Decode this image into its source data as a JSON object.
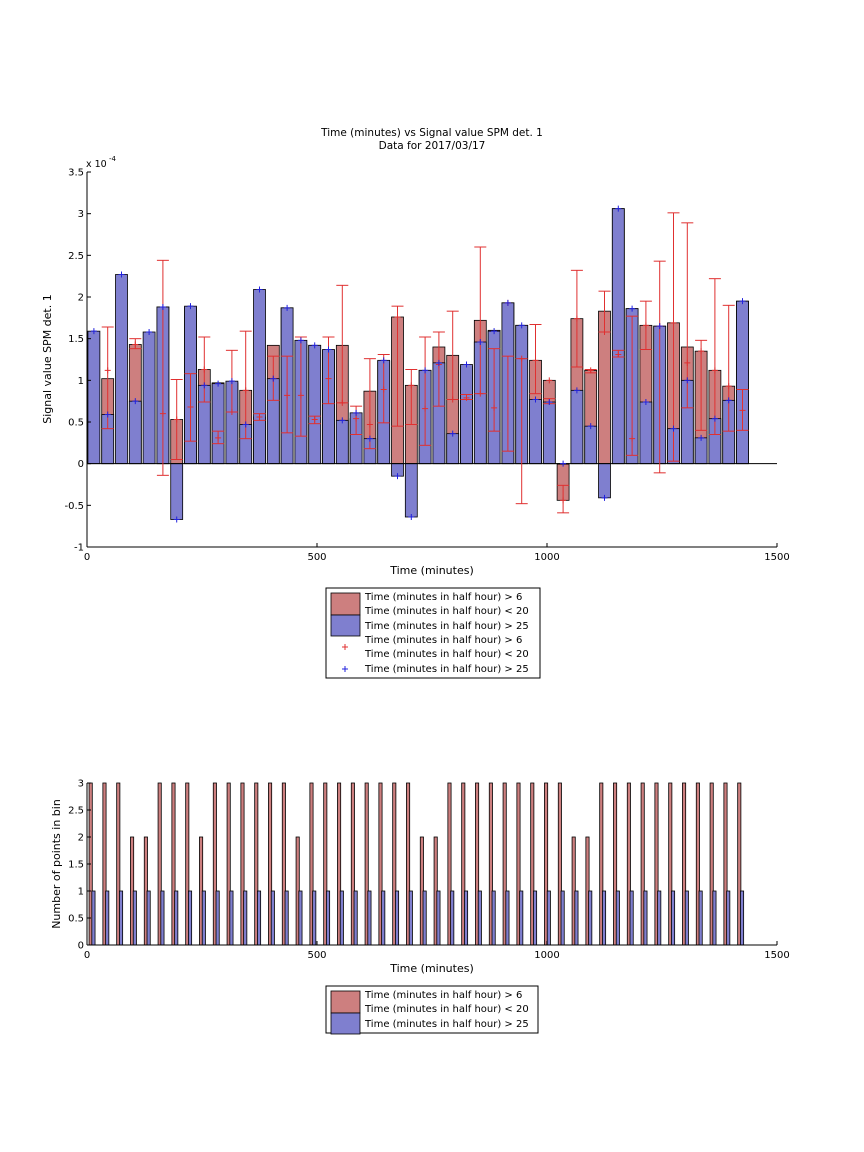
{
  "figure": {
    "background": "#ffffff"
  },
  "colors": {
    "series_red_fill": "#cd7f7f",
    "series_blue_fill": "#7f7fcf",
    "errorbar_red": "#e03030",
    "errorbar_blue": "#2222dd",
    "axis": "#000000"
  },
  "chart_data": [
    {
      "type": "bar",
      "title": "Time (minutes) vs Signal value SPM det. 1",
      "subtitle": "Data for 2017/03/17",
      "xlabel": "Time (minutes)",
      "ylabel": "Signal value SPM det. 1",
      "y_exponent_label": "x 10",
      "y_exponent": "-4",
      "xlim": [
        0,
        1500
      ],
      "ylim": [
        -1,
        3.5
      ],
      "xticks": [
        0,
        500,
        1000,
        1500
      ],
      "yticks": [
        -1,
        -0.5,
        0,
        0.5,
        1,
        1.5,
        2,
        2.5,
        3,
        3.5
      ],
      "grid": false,
      "legend_position": "below",
      "legend": [
        {
          "marker": "patch",
          "color": "red",
          "lines": [
            "Time (minutes in half hour) > 6",
            "Time (minutes in half hour) < 20"
          ]
        },
        {
          "marker": "patch",
          "color": "blue",
          "lines": [
            "Time (minutes in half hour) > 25"
          ]
        },
        {
          "marker": "plus",
          "color": "red",
          "lines": [
            "Time (minutes in half hour) > 6",
            "Time (minutes in half hour) < 20"
          ]
        },
        {
          "marker": "plus",
          "color": "blue",
          "lines": [
            "Time (minutes in half hour) > 25"
          ]
        }
      ],
      "series": [
        {
          "color": "red",
          "x": [
            45,
            105,
            165,
            195,
            225,
            255,
            285,
            315,
            345,
            375,
            405,
            435,
            465,
            495,
            525,
            555,
            585,
            615,
            645,
            675,
            705,
            735,
            765,
            795,
            825,
            855,
            885,
            915,
            945,
            975,
            1005,
            1035,
            1065,
            1095,
            1125,
            1155,
            1185,
            1215,
            1245,
            1275,
            1305,
            1335,
            1365,
            1395,
            1425
          ],
          "y": [
            1.02,
            1.43,
            1.88,
            0.53,
            1.88,
            1.13,
            0.97,
            0.97,
            0.88,
            0.56,
            1.42,
            1.87,
            1.43,
            1.42,
            1.36,
            1.42,
            0.54,
            0.87,
            1.23,
            1.76,
            0.94,
            1.12,
            1.4,
            1.3,
            1.17,
            1.72,
            1.6,
            1.93,
            1.66,
            1.24,
            1.0,
            -0.44,
            1.74,
            1.12,
            1.83,
            3.06,
            1.86,
            1.66,
            1.65,
            1.69,
            1.4,
            1.35,
            1.12,
            0.93,
            1.95
          ],
          "err_low": [
            0.42,
            1.38,
            -0.14,
            0.05,
            0.27,
            0.74,
            0.24,
            0.62,
            0.3,
            0.52,
            0.76,
            0.37,
            0.33,
            0.48,
            0.72,
            0.73,
            0.35,
            0.18,
            0.49,
            0.45,
            0.47,
            0.22,
            0.69,
            0.77,
            0.77,
            0.84,
            0.39,
            0.15,
            -0.48,
            0.84,
            0.72,
            -0.59,
            1.16,
            1.09,
            1.58,
            1.28,
            0.1,
            1.37,
            -0.11,
            0.03,
            0.67,
            0.4,
            0.35,
            0.39,
            0.4
          ],
          "err_high": [
            1.64,
            1.5,
            2.44,
            1.01,
            1.08,
            1.52,
            0.39,
            1.36,
            1.59,
            0.6,
            1.29,
            1.29,
            1.52,
            0.57,
            1.52,
            2.14,
            0.69,
            1.26,
            1.31,
            1.89,
            1.13,
            1.52,
            1.58,
            1.83,
            0.83,
            2.6,
            1.38,
            1.29,
            1.26,
            1.67,
            0.78,
            -0.26,
            2.32,
            1.13,
            2.07,
            1.36,
            1.77,
            1.95,
            2.43,
            3.01,
            2.89,
            1.48,
            2.22,
            1.9,
            0.89
          ],
          "point": [
            1.12,
            1.43,
            0.6,
            0.53,
            0.68,
            1.13,
            0.31,
            0.62,
            0.88,
            0.56,
            1.02,
            0.82,
            0.82,
            0.53,
            1.02,
            0.73,
            0.54,
            0.47,
            0.89,
            1.76,
            0.94,
            0.66,
            1.19,
            0.77,
            0.79,
            0.84,
            0.67,
            1.93,
            1.26,
            1.24,
            1.0,
            -0.44,
            1.74,
            1.12,
            1.58,
            1.31,
            0.3,
            1.66,
            1.65,
            1.69,
            1.21,
            1.35,
            1.12,
            0.93,
            0.64
          ]
        },
        {
          "color": "blue",
          "x": [
            15,
            45,
            75,
            105,
            135,
            165,
            195,
            225,
            255,
            285,
            315,
            345,
            375,
            405,
            435,
            465,
            495,
            525,
            555,
            585,
            615,
            645,
            675,
            705,
            735,
            765,
            795,
            825,
            855,
            885,
            915,
            945,
            975,
            1005,
            1035,
            1065,
            1095,
            1125,
            1155,
            1185,
            1215,
            1245,
            1275,
            1305,
            1335,
            1365,
            1395,
            1425
          ],
          "y": [
            1.59,
            0.59,
            2.27,
            0.75,
            1.58,
            1.88,
            -0.67,
            1.89,
            0.94,
            0.96,
            0.99,
            0.47,
            2.09,
            1.02,
            1.87,
            1.48,
            1.42,
            1.37,
            0.52,
            0.61,
            0.3,
            1.24,
            -0.15,
            -0.64,
            1.12,
            1.21,
            0.36,
            1.19,
            1.46,
            1.59,
            1.93,
            1.66,
            0.77,
            0.74,
            0.0,
            0.88,
            0.45,
            -0.41,
            3.06,
            1.86,
            0.74,
            1.65,
            0.42,
            1.0,
            0.31,
            0.54,
            0.76,
            1.95
          ],
          "err_low": [
            1.59,
            0.59,
            2.27,
            0.75,
            1.58,
            1.88,
            -0.67,
            1.89,
            0.94,
            0.96,
            0.99,
            0.47,
            2.09,
            1.02,
            1.87,
            1.48,
            1.42,
            1.37,
            0.52,
            0.61,
            0.3,
            1.24,
            -0.15,
            -0.64,
            1.12,
            1.21,
            0.36,
            1.19,
            1.46,
            1.59,
            1.93,
            1.66,
            0.77,
            0.74,
            0.0,
            0.88,
            0.45,
            -0.41,
            3.06,
            1.86,
            0.74,
            1.65,
            0.42,
            1.0,
            0.31,
            0.54,
            0.76,
            1.95
          ],
          "err_high": [
            1.59,
            0.59,
            2.27,
            0.75,
            1.58,
            1.88,
            -0.67,
            1.89,
            0.94,
            0.96,
            0.99,
            0.47,
            2.09,
            1.02,
            1.87,
            1.48,
            1.42,
            1.37,
            0.52,
            0.61,
            0.3,
            1.24,
            -0.15,
            -0.64,
            1.12,
            1.21,
            0.36,
            1.19,
            1.46,
            1.59,
            1.93,
            1.66,
            0.77,
            0.74,
            0.0,
            0.88,
            0.45,
            -0.41,
            3.06,
            1.86,
            0.74,
            1.65,
            0.42,
            1.0,
            0.31,
            0.54,
            0.76,
            1.95
          ],
          "point": [
            1.59,
            0.59,
            2.27,
            0.75,
            1.58,
            1.88,
            -0.67,
            1.89,
            0.94,
            0.96,
            0.99,
            0.47,
            2.09,
            1.02,
            1.87,
            1.48,
            1.42,
            1.37,
            0.52,
            0.61,
            0.3,
            1.24,
            -0.15,
            -0.64,
            1.12,
            1.21,
            0.36,
            1.19,
            1.46,
            1.59,
            1.93,
            1.66,
            0.77,
            0.74,
            0.0,
            0.88,
            0.45,
            -0.41,
            3.06,
            1.86,
            0.74,
            1.65,
            0.42,
            1.0,
            0.31,
            0.54,
            0.76,
            1.95
          ]
        }
      ]
    },
    {
      "type": "bar",
      "xlabel": "Time (minutes)",
      "ylabel": "Number of points in bin",
      "xlim": [
        0,
        1500
      ],
      "ylim": [
        0,
        3
      ],
      "xticks": [
        0,
        500,
        1000,
        1500
      ],
      "yticks": [
        0,
        0.5,
        1,
        1.5,
        2,
        2.5,
        3
      ],
      "grid": false,
      "legend_position": "below",
      "legend": [
        {
          "marker": "patch",
          "color": "red",
          "lines": [
            "Time (minutes in half hour) > 6",
            "Time (minutes in half hour) < 20"
          ]
        },
        {
          "marker": "patch",
          "color": "blue",
          "lines": [
            "Time (minutes in half hour) > 25"
          ]
        }
      ],
      "series": [
        {
          "color": "red",
          "x": [
            8,
            38,
            68,
            98,
            128,
            158,
            188,
            218,
            248,
            278,
            308,
            338,
            368,
            398,
            428,
            458,
            488,
            518,
            548,
            578,
            608,
            638,
            668,
            698,
            728,
            758,
            788,
            818,
            848,
            878,
            908,
            938,
            968,
            998,
            1028,
            1058,
            1088,
            1118,
            1148,
            1178,
            1208,
            1238,
            1268,
            1298,
            1328,
            1358,
            1388,
            1418
          ],
          "y": [
            3,
            3,
            3,
            2,
            2,
            3,
            3,
            3,
            2,
            3,
            3,
            3,
            3,
            3,
            3,
            2,
            3,
            3,
            3,
            3,
            3,
            3,
            3,
            3,
            2,
            2,
            3,
            3,
            3,
            3,
            3,
            3,
            3,
            3,
            3,
            2,
            2,
            3,
            3,
            3,
            3,
            3,
            3,
            3,
            3,
            3,
            3,
            3
          ]
        },
        {
          "color": "blue",
          "x": [
            14,
            44,
            74,
            104,
            134,
            164,
            194,
            224,
            254,
            284,
            314,
            344,
            374,
            404,
            434,
            464,
            494,
            524,
            554,
            584,
            614,
            644,
            674,
            704,
            734,
            764,
            794,
            824,
            854,
            884,
            914,
            944,
            974,
            1004,
            1034,
            1064,
            1094,
            1124,
            1154,
            1184,
            1214,
            1244,
            1274,
            1304,
            1334,
            1364,
            1394,
            1424
          ],
          "y": [
            1,
            1,
            1,
            1,
            1,
            1,
            1,
            1,
            1,
            1,
            1,
            1,
            1,
            1,
            1,
            1,
            1,
            1,
            1,
            1,
            1,
            1,
            1,
            1,
            1,
            1,
            1,
            1,
            1,
            1,
            1,
            1,
            1,
            1,
            1,
            1,
            1,
            1,
            1,
            1,
            1,
            1,
            1,
            1,
            1,
            1,
            1,
            1
          ]
        }
      ]
    }
  ]
}
